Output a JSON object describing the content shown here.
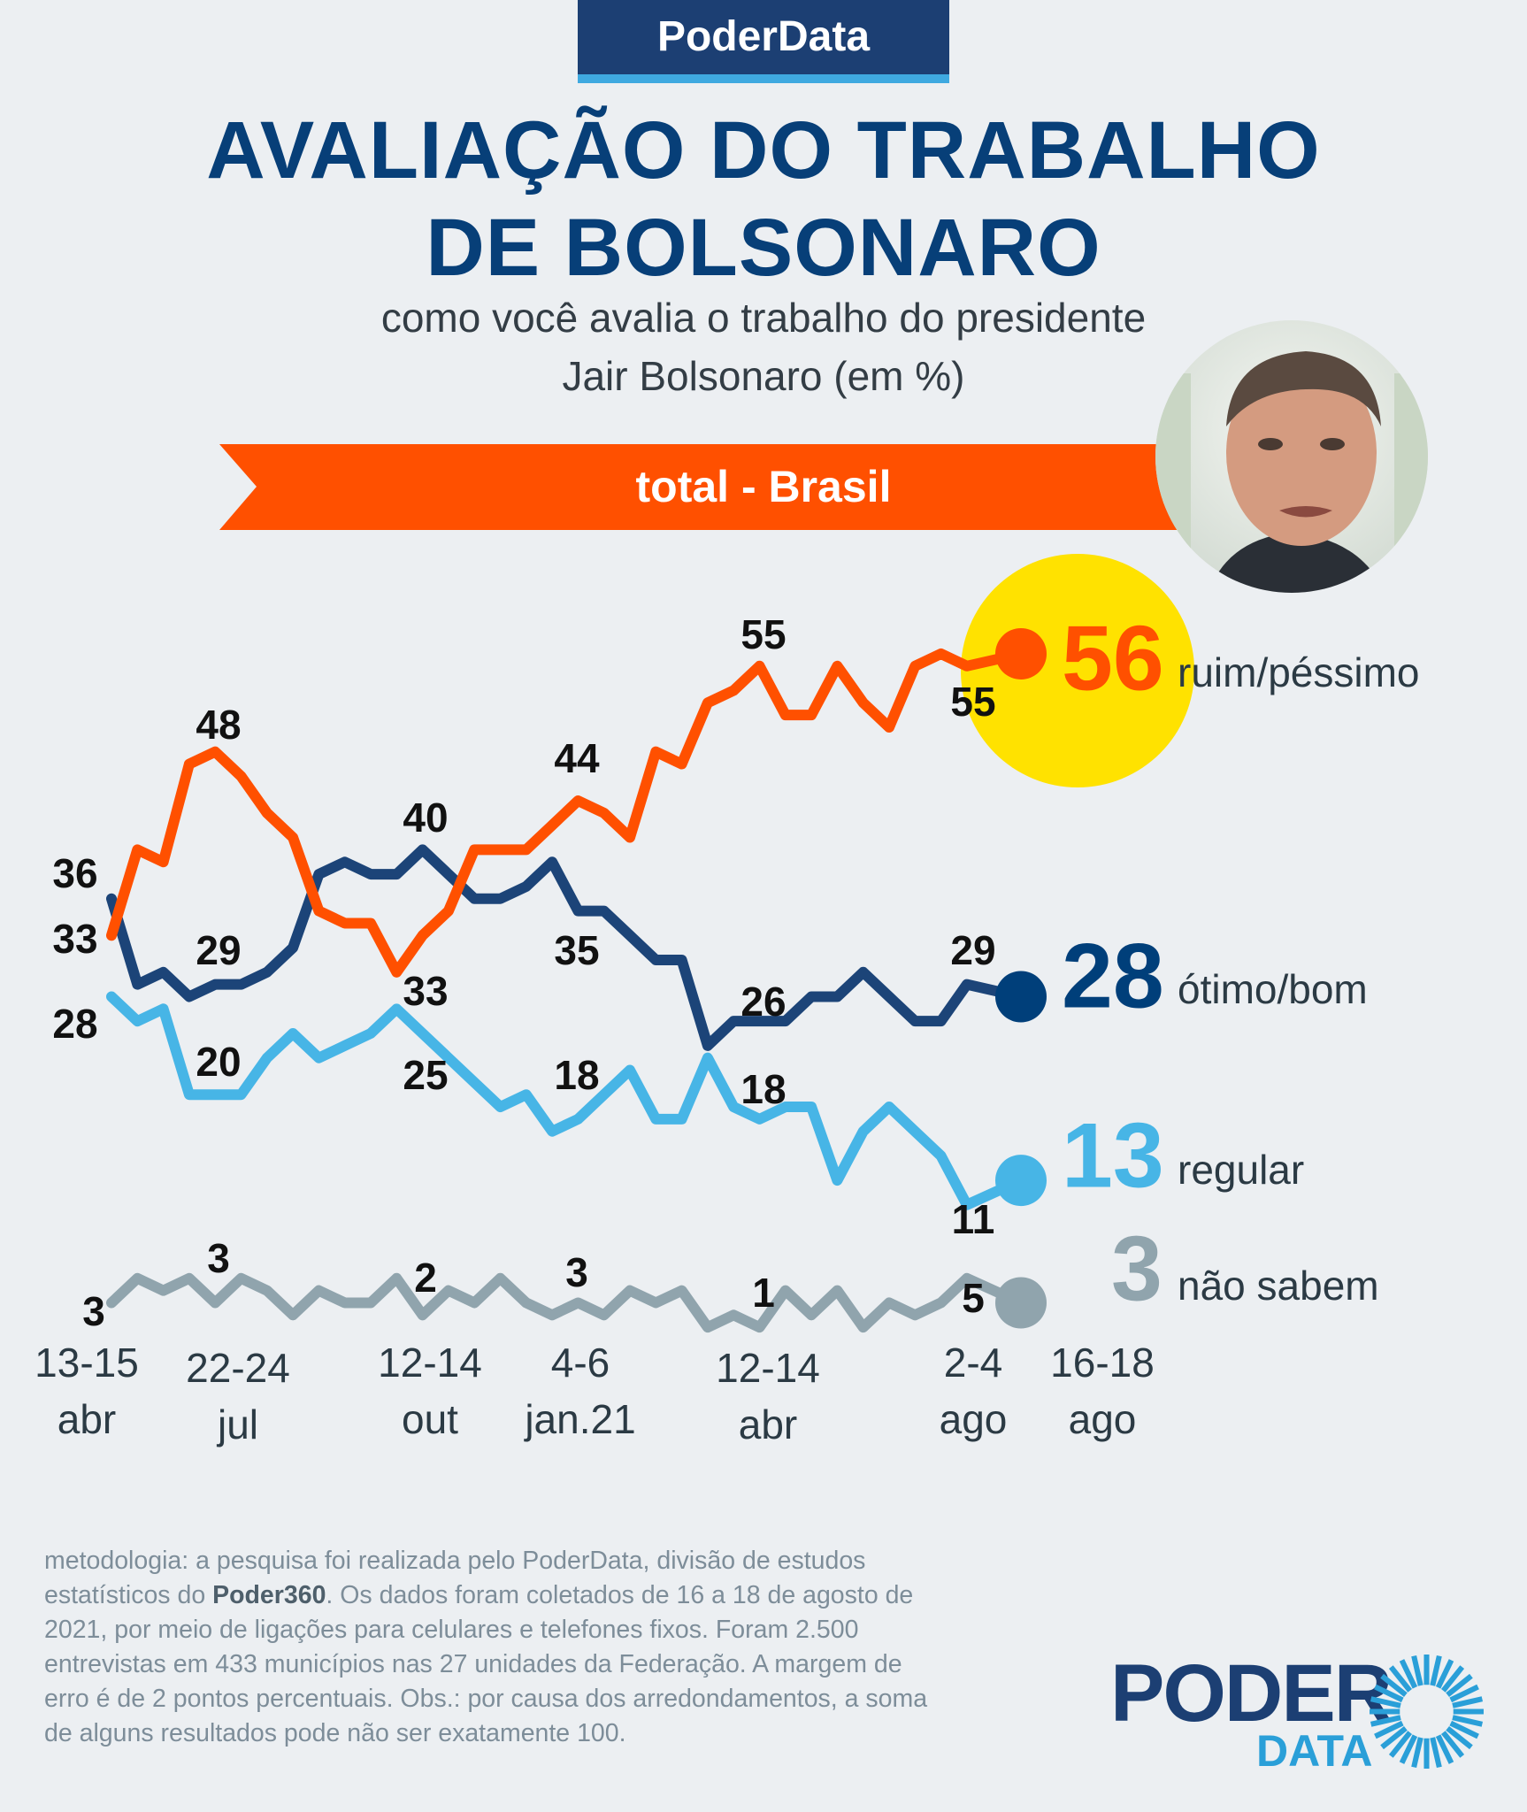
{
  "header": {
    "brand": "PoderData",
    "title_line1": "AVALIAÇÃO DO TRABALHO",
    "title_line2": "DE BOLSONARO",
    "subtitle_line1": "como você avalia o trabalho do presidente",
    "subtitle_line2": "Jair Bolsonaro (em %)",
    "banner": "total - Brasil"
  },
  "colors": {
    "ruim": "#ff5000",
    "otimo": "#1c4478",
    "otimo_big": "#003f7a",
    "regular": "#47b5e6",
    "nao_sabem": "#90a4ad",
    "highlight": "#ffe200"
  },
  "chart_data": {
    "type": "line",
    "title": "Avaliação do trabalho de Bolsonaro",
    "ylabel": "%",
    "ylim": [
      0,
      60
    ],
    "grid": false,
    "x_tick_labels": [
      {
        "line1": "13-15",
        "line2": "abr"
      },
      {
        "line1": "22-24",
        "line2": "jul"
      },
      {
        "line1": "12-14",
        "line2": "out"
      },
      {
        "line1": "4-6",
        "line2": "jan.21"
      },
      {
        "line1": "12-14",
        "line2": "abr"
      },
      {
        "line1": "2-4",
        "line2": "ago"
      },
      {
        "line1": "16-18",
        "line2": "ago"
      }
    ],
    "series": [
      {
        "key": "ruim",
        "name": "ruim/péssimo",
        "final": "56",
        "values": [
          33,
          40,
          39,
          47,
          48,
          46,
          43,
          41,
          35,
          34,
          34,
          30,
          33,
          35,
          40,
          40,
          40,
          42,
          44,
          43,
          41,
          48,
          47,
          52,
          53,
          55,
          51,
          51,
          55,
          52,
          50,
          55,
          56,
          55,
          56
        ]
      },
      {
        "key": "otimo",
        "name": "ótimo/bom",
        "final": "28",
        "values": [
          36,
          29,
          30,
          28,
          29,
          29,
          30,
          32,
          38,
          39,
          38,
          38,
          40,
          38,
          36,
          36,
          37,
          39,
          35,
          35,
          33,
          31,
          31,
          24,
          26,
          26,
          26,
          28,
          28,
          30,
          28,
          26,
          26,
          29,
          28
        ]
      },
      {
        "key": "regular",
        "name": "regular",
        "final": "13",
        "values": [
          28,
          26,
          27,
          20,
          20,
          20,
          23,
          25,
          23,
          24,
          25,
          27,
          25,
          23,
          21,
          19,
          20,
          17,
          18,
          20,
          22,
          18,
          18,
          23,
          19,
          18,
          19,
          19,
          13,
          17,
          19,
          17,
          15,
          11,
          13
        ]
      },
      {
        "key": "nao_sabem",
        "name": "não sabem",
        "final": "3",
        "values": [
          3,
          5,
          4,
          5,
          3,
          5,
          4,
          2,
          4,
          3,
          3,
          5,
          2,
          4,
          3,
          5,
          3,
          2,
          3,
          2,
          4,
          3,
          4,
          1,
          2,
          1,
          4,
          2,
          4,
          1,
          3,
          2,
          3,
          5,
          3
        ]
      }
    ],
    "data_labels": [
      "36",
      "33",
      "28",
      "48",
      "29",
      "20",
      "40",
      "33",
      "25",
      "44",
      "35",
      "18",
      "55",
      "26",
      "18",
      "55",
      "29",
      "11",
      "3",
      "3",
      "2",
      "3",
      "1",
      "5"
    ]
  },
  "footer": {
    "line1": "metodologia: a pesquisa foi realizada pelo PoderData, divisão de estudos",
    "line2_a": "estatísticos do ",
    "line2_b": "Poder360",
    "line2_c": ". Os dados foram coletados de 16 a 18 de agosto de",
    "line3": "2021, por meio de ligações para celulares e telefones fixos. Foram 2.500",
    "line4": "entrevistas em 433 municípios nas 27 unidades da Federação. A margem de",
    "line5": "erro é de 2 pontos percentuais. Obs.: por causa dos arredondamentos, a soma",
    "line6": "de alguns resultados pode não ser exatamente 100."
  },
  "logo": {
    "word1": "PODER",
    "word2": "DATA"
  }
}
